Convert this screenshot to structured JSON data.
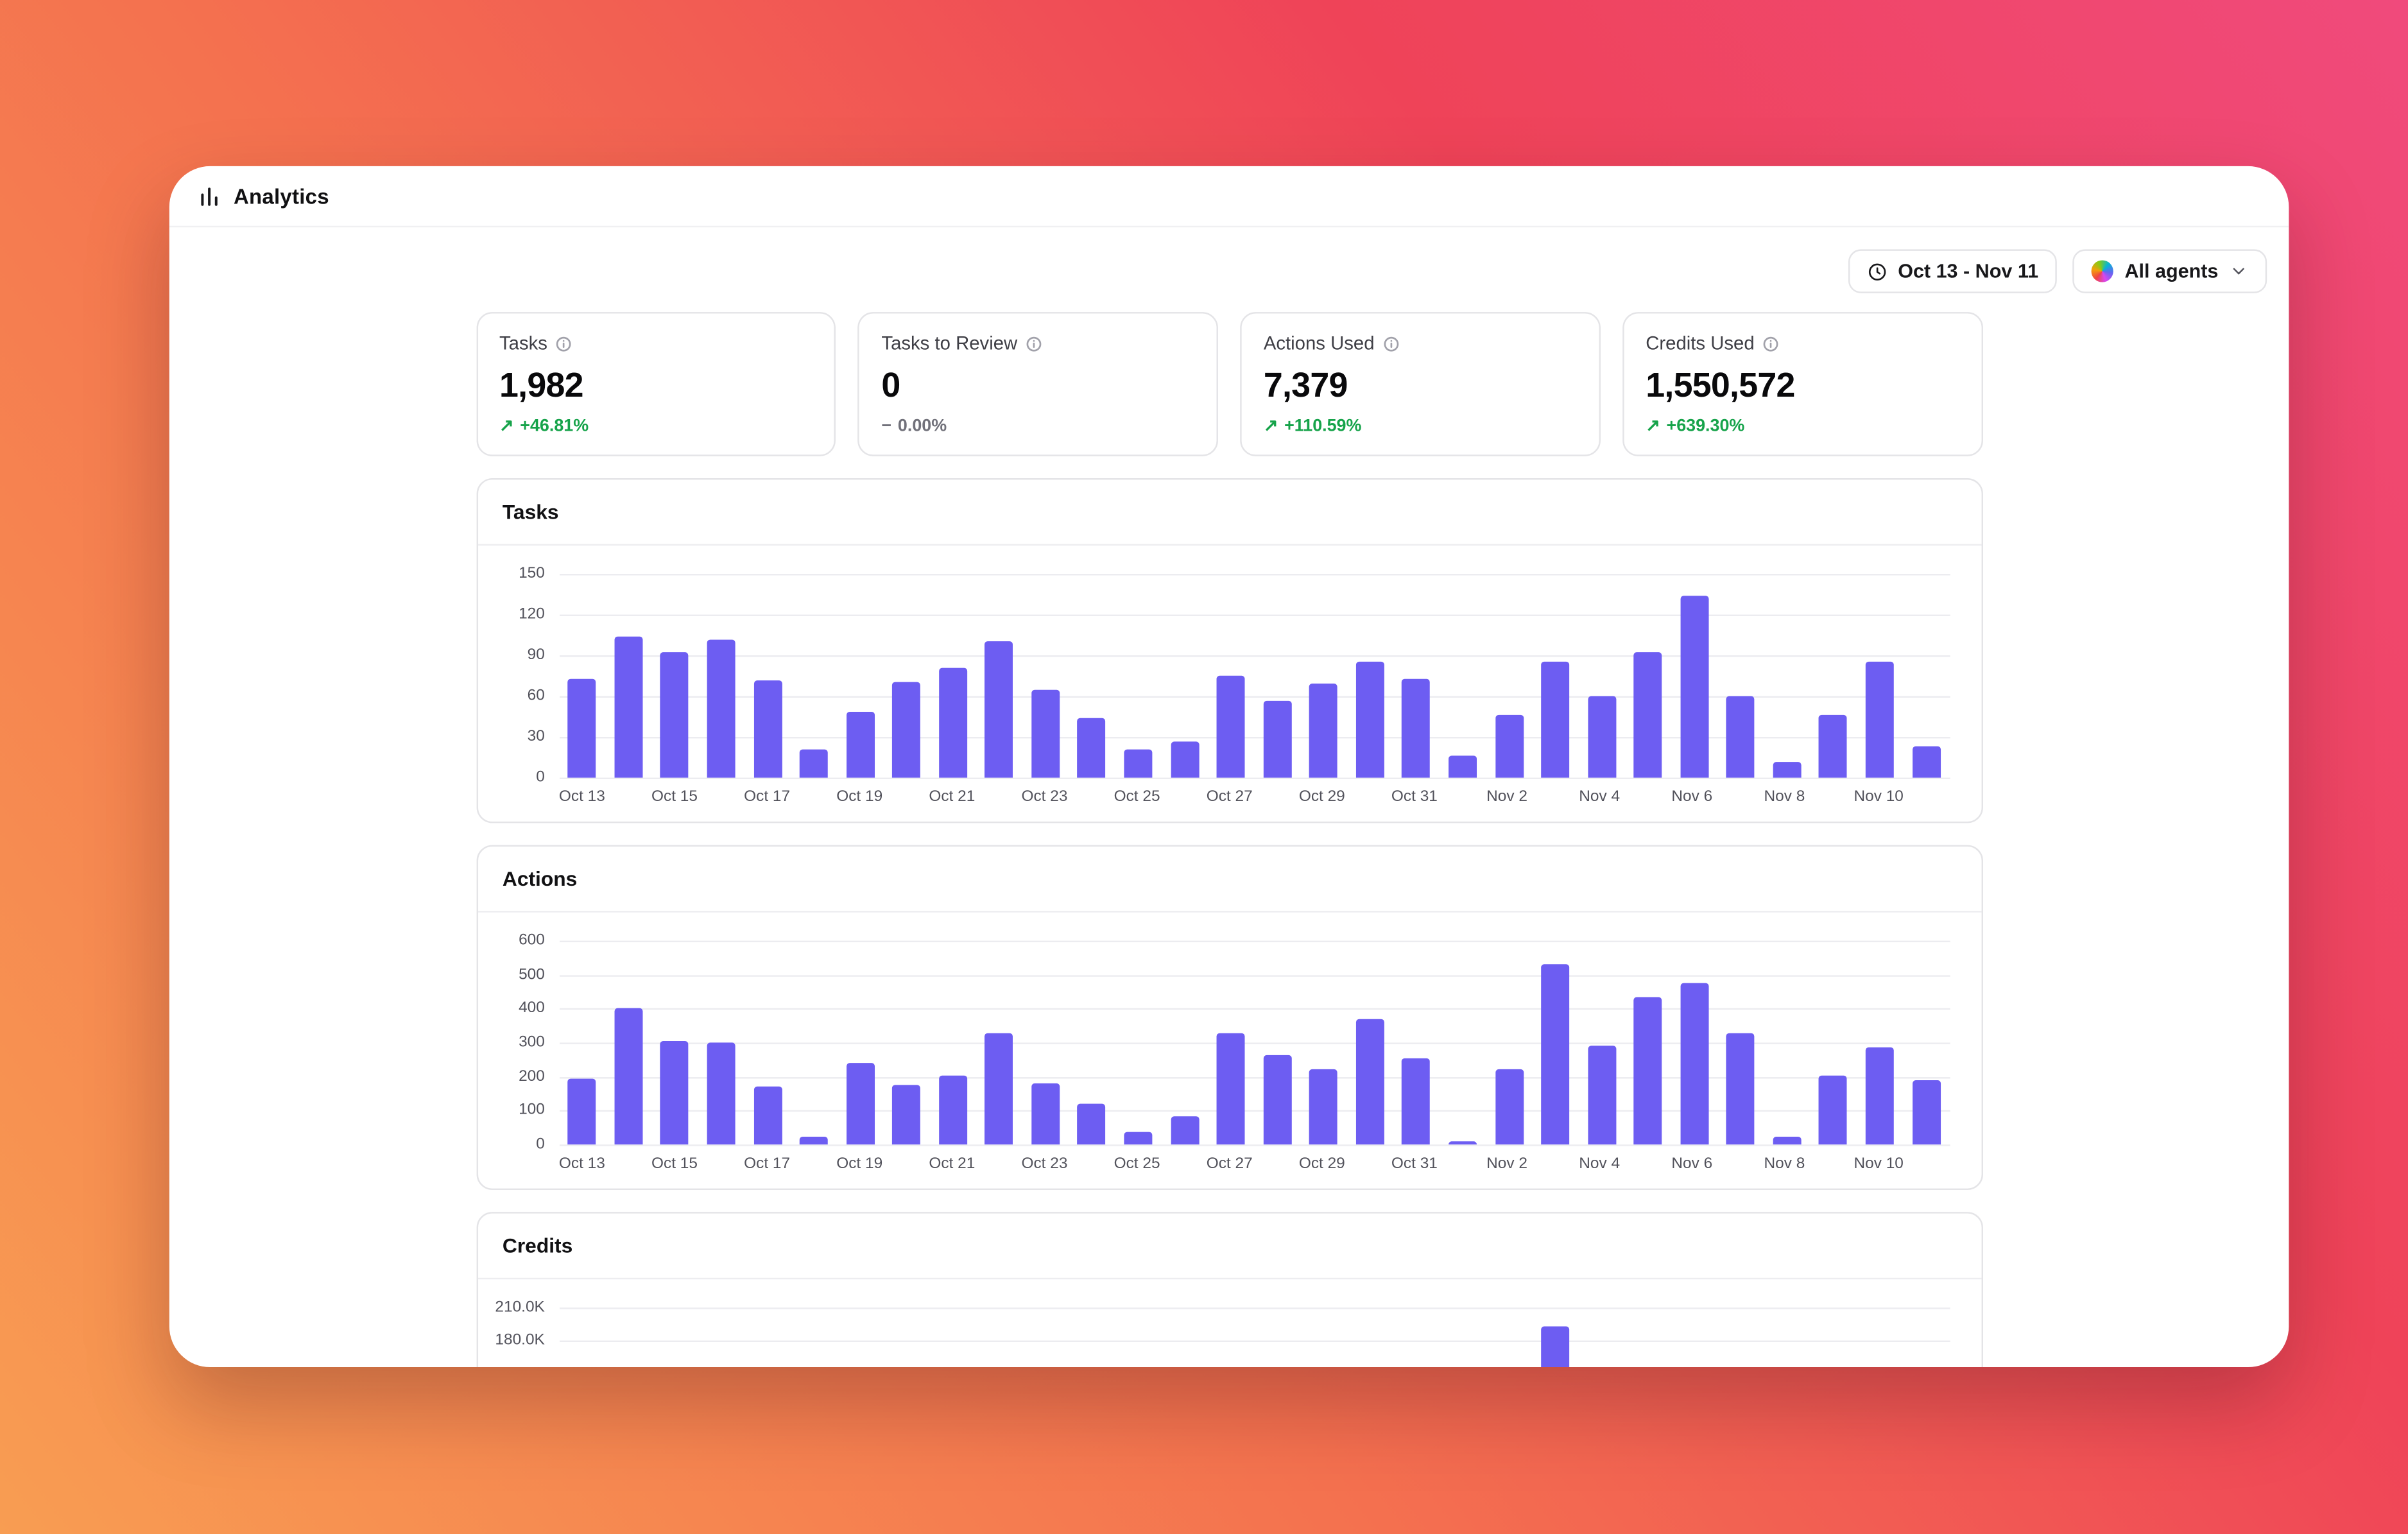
{
  "app": {
    "title": "Analytics"
  },
  "toolbar": {
    "date_range": {
      "label": "Oct 13 - Nov 11",
      "icon": "clock-icon"
    },
    "agents": {
      "label": "All agents",
      "icon": "agents-icon",
      "chevron": "chevron-down-icon"
    }
  },
  "stats": [
    {
      "label": "Tasks",
      "value": "1,982",
      "delta": "+46.81%",
      "delta_icon": "↗",
      "trend": "up"
    },
    {
      "label": "Tasks to Review",
      "value": "0",
      "delta": "0.00%",
      "delta_icon": "−",
      "trend": "flat"
    },
    {
      "label": "Actions Used",
      "value": "7,379",
      "delta": "+110.59%",
      "delta_icon": "↗",
      "trend": "up"
    },
    {
      "label": "Credits Used",
      "value": "1,550,572",
      "delta": "+639.30%",
      "delta_icon": "↗",
      "trend": "up"
    }
  ],
  "colors": {
    "bar": "#6D5DF2",
    "positive": "#16a34a",
    "neutral": "#71717a",
    "background_gradient": [
      "#F89D52",
      "#F4714F",
      "#EF4358",
      "#F04A7C"
    ]
  },
  "chart_data": [
    {
      "type": "bar",
      "title": "Tasks",
      "categories": [
        "Oct 13",
        "Oct 14",
        "Oct 15",
        "Oct 16",
        "Oct 17",
        "Oct 18",
        "Oct 19",
        "Oct 20",
        "Oct 21",
        "Oct 22",
        "Oct 23",
        "Oct 24",
        "Oct 25",
        "Oct 26",
        "Oct 27",
        "Oct 28",
        "Oct 29",
        "Oct 30",
        "Oct 31",
        "Nov 1",
        "Nov 2",
        "Nov 3",
        "Nov 4",
        "Nov 5",
        "Nov 6",
        "Nov 7",
        "Nov 8",
        "Nov 9",
        "Nov 10",
        "Nov 11"
      ],
      "values": [
        73,
        104,
        92,
        102,
        71,
        21,
        48,
        70,
        81,
        100,
        65,
        44,
        21,
        27,
        75,
        57,
        69,
        85,
        73,
        16,
        46,
        85,
        60,
        92,
        134,
        60,
        12,
        46,
        85,
        23
      ],
      "ylim": [
        0,
        150
      ],
      "yticks": [
        {
          "value": 150,
          "label": "150"
        },
        {
          "value": 120,
          "label": "120"
        },
        {
          "value": 90,
          "label": "90"
        },
        {
          "value": 60,
          "label": "60"
        },
        {
          "value": 30,
          "label": "30"
        },
        {
          "value": 0,
          "label": "0"
        }
      ],
      "xticks": [
        "Oct 13",
        "Oct 15",
        "Oct 17",
        "Oct 19",
        "Oct 21",
        "Oct 23",
        "Oct 25",
        "Oct 27",
        "Oct 29",
        "Oct 31",
        "Nov 2",
        "Nov 4",
        "Nov 6",
        "Nov 8",
        "Nov 10"
      ],
      "bar_color": "#6D5DF2",
      "grid": true,
      "legend": "none"
    },
    {
      "type": "bar",
      "title": "Actions",
      "categories": [
        "Oct 13",
        "Oct 14",
        "Oct 15",
        "Oct 16",
        "Oct 17",
        "Oct 18",
        "Oct 19",
        "Oct 20",
        "Oct 21",
        "Oct 22",
        "Oct 23",
        "Oct 24",
        "Oct 25",
        "Oct 26",
        "Oct 27",
        "Oct 28",
        "Oct 29",
        "Oct 30",
        "Oct 31",
        "Nov 1",
        "Nov 2",
        "Nov 3",
        "Nov 4",
        "Nov 5",
        "Nov 6",
        "Nov 7",
        "Nov 8",
        "Nov 9",
        "Nov 10",
        "Nov 11"
      ],
      "values": [
        195,
        400,
        305,
        300,
        170,
        25,
        240,
        175,
        205,
        330,
        180,
        120,
        35,
        85,
        330,
        265,
        220,
        370,
        255,
        10,
        220,
        530,
        290,
        435,
        475,
        330,
        25,
        205,
        285,
        190
      ],
      "ylim": [
        0,
        600
      ],
      "yticks": [
        {
          "value": 600,
          "label": "600"
        },
        {
          "value": 500,
          "label": "500"
        },
        {
          "value": 400,
          "label": "400"
        },
        {
          "value": 300,
          "label": "300"
        },
        {
          "value": 200,
          "label": "200"
        },
        {
          "value": 100,
          "label": "100"
        },
        {
          "value": 0,
          "label": "0"
        }
      ],
      "xticks": [
        "Oct 13",
        "Oct 15",
        "Oct 17",
        "Oct 19",
        "Oct 21",
        "Oct 23",
        "Oct 25",
        "Oct 27",
        "Oct 29",
        "Oct 31",
        "Nov 2",
        "Nov 4",
        "Nov 6",
        "Nov 8",
        "Nov 10"
      ],
      "bar_color": "#6D5DF2",
      "grid": true,
      "legend": "none"
    },
    {
      "type": "bar",
      "title": "Credits",
      "partially_visible": true,
      "categories": [
        "Oct 13",
        "Oct 14",
        "Oct 15",
        "Oct 16",
        "Oct 17",
        "Oct 18",
        "Oct 19",
        "Oct 20",
        "Oct 21",
        "Oct 22",
        "Oct 23",
        "Oct 24",
        "Oct 25",
        "Oct 26",
        "Oct 27",
        "Oct 28",
        "Oct 29",
        "Oct 30",
        "Oct 31",
        "Nov 1",
        "Nov 2",
        "Nov 3",
        "Nov 4",
        "Nov 5",
        "Nov 6",
        "Nov 7",
        "Nov 8",
        "Nov 9",
        "Nov 10",
        "Nov 11"
      ],
      "values": [
        null,
        null,
        null,
        null,
        null,
        null,
        null,
        null,
        null,
        null,
        null,
        null,
        null,
        null,
        null,
        null,
        null,
        null,
        null,
        null,
        null,
        192000,
        null,
        null,
        null,
        null,
        null,
        null,
        null,
        null
      ],
      "ylim": [
        0,
        210000
      ],
      "yticks": [
        {
          "value": 210000,
          "label": "210.0K"
        },
        {
          "value": 180000,
          "label": "180.0K"
        }
      ],
      "xticks": [],
      "bar_color": "#6D5DF2",
      "grid": true,
      "legend": "none"
    }
  ]
}
